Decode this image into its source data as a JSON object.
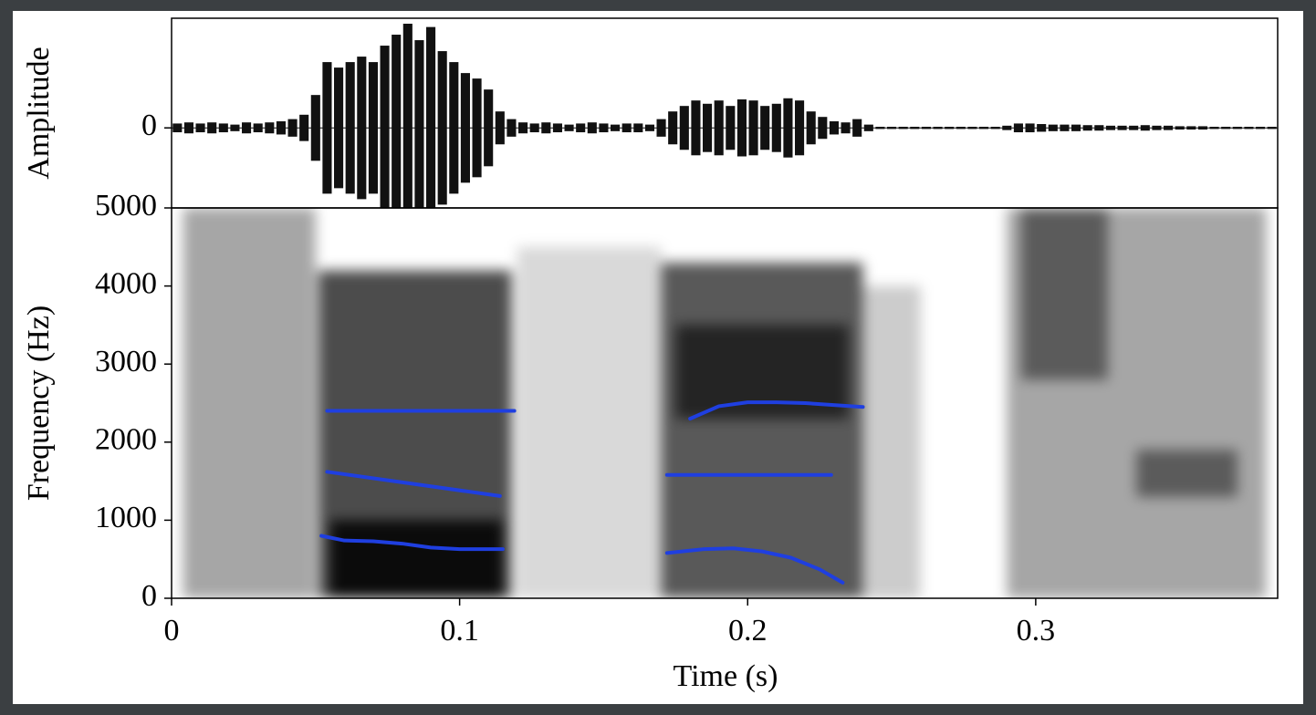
{
  "chart_data": [
    {
      "type": "waveform",
      "ylabel": "Amplitude",
      "color": "#111111",
      "xlim": [
        0,
        0.384
      ],
      "ylim": [
        -0.73,
        1
      ],
      "yticks": [
        0
      ],
      "x": [
        0.002,
        0.006,
        0.01,
        0.014,
        0.018,
        0.022,
        0.026,
        0.03,
        0.034,
        0.038,
        0.042,
        0.046,
        0.05,
        0.054,
        0.058,
        0.062,
        0.066,
        0.07,
        0.074,
        0.078,
        0.082,
        0.086,
        0.09,
        0.094,
        0.098,
        0.102,
        0.106,
        0.11,
        0.114,
        0.118,
        0.122,
        0.126,
        0.13,
        0.134,
        0.138,
        0.142,
        0.146,
        0.15,
        0.154,
        0.158,
        0.162,
        0.166,
        0.17,
        0.174,
        0.178,
        0.182,
        0.186,
        0.19,
        0.194,
        0.198,
        0.202,
        0.206,
        0.21,
        0.214,
        0.218,
        0.222,
        0.226,
        0.23,
        0.234,
        0.238,
        0.242,
        0.246,
        0.25,
        0.254,
        0.258,
        0.262,
        0.266,
        0.27,
        0.274,
        0.278,
        0.282,
        0.286,
        0.29,
        0.294,
        0.298,
        0.302,
        0.306,
        0.31,
        0.314,
        0.318,
        0.322,
        0.326,
        0.33,
        0.334,
        0.338,
        0.342,
        0.346,
        0.35,
        0.354,
        0.358,
        0.362,
        0.366,
        0.37,
        0.374,
        0.378,
        0.382
      ],
      "values": [
        0.04,
        0.05,
        0.04,
        0.05,
        0.04,
        0.03,
        0.05,
        0.04,
        0.05,
        0.06,
        0.08,
        0.12,
        0.3,
        0.6,
        0.55,
        0.6,
        0.65,
        0.6,
        0.75,
        0.85,
        0.95,
        0.8,
        0.92,
        0.7,
        0.6,
        0.5,
        0.45,
        0.35,
        0.15,
        0.08,
        0.05,
        0.04,
        0.05,
        0.04,
        0.03,
        0.04,
        0.05,
        0.04,
        0.03,
        0.04,
        0.04,
        0.03,
        0.08,
        0.15,
        0.2,
        0.25,
        0.22,
        0.25,
        0.2,
        0.26,
        0.25,
        0.2,
        0.22,
        0.27,
        0.25,
        0.15,
        0.1,
        0.06,
        0.05,
        0.08,
        0.03,
        0.01,
        0.01,
        0.01,
        0.01,
        0.01,
        0.01,
        0.01,
        0.01,
        0.01,
        0.01,
        0.01,
        0.02,
        0.04,
        0.04,
        0.035,
        0.03,
        0.03,
        0.03,
        0.025,
        0.025,
        0.02,
        0.02,
        0.02,
        0.025,
        0.02,
        0.02,
        0.015,
        0.015,
        0.015,
        0.01,
        0.01,
        0.01,
        0.01,
        0.01,
        0.01
      ]
    },
    {
      "type": "spectrogram",
      "xlabel": "Time (s)",
      "ylabel": "Frequency (Hz)",
      "xlim": [
        0,
        0.384
      ],
      "ylim": [
        0,
        5000
      ],
      "xticks": [
        0,
        0.1,
        0.2,
        0.3
      ],
      "yticks": [
        0,
        1000,
        2000,
        3000,
        4000,
        5000
      ],
      "regions": [
        {
          "t": [
            0.004,
            0.05
          ],
          "f": [
            0,
            5000
          ],
          "intensity": 0.35
        },
        {
          "t": [
            0.051,
            0.118
          ],
          "f": [
            0,
            4200
          ],
          "intensity": 0.7
        },
        {
          "t": [
            0.055,
            0.115
          ],
          "f": [
            0,
            1000
          ],
          "intensity": 0.85
        },
        {
          "t": [
            0.12,
            0.17
          ],
          "f": [
            0,
            4500
          ],
          "intensity": 0.15
        },
        {
          "t": [
            0.17,
            0.24
          ],
          "f": [
            0,
            4300
          ],
          "intensity": 0.65
        },
        {
          "t": [
            0.175,
            0.235
          ],
          "f": [
            2300,
            3500
          ],
          "intensity": 0.6
        },
        {
          "t": [
            0.24,
            0.26
          ],
          "f": [
            0,
            4000
          ],
          "intensity": 0.2
        },
        {
          "t": [
            0.29,
            0.38
          ],
          "f": [
            0,
            5000
          ],
          "intensity": 0.35
        },
        {
          "t": [
            0.295,
            0.325
          ],
          "f": [
            2800,
            5000
          ],
          "intensity": 0.45
        },
        {
          "t": [
            0.335,
            0.37
          ],
          "f": [
            1300,
            1900
          ],
          "intensity": 0.45
        }
      ],
      "track_color": "#1f3fe0",
      "formant_tracks": [
        {
          "x": [
            0.054,
            0.119
          ],
          "values": [
            2400,
            2400
          ]
        },
        {
          "x": [
            0.054,
            0.114
          ],
          "values": [
            1620,
            1310
          ]
        },
        {
          "x": [
            0.052,
            0.06,
            0.07,
            0.08,
            0.09,
            0.1,
            0.115
          ],
          "values": [
            800,
            740,
            730,
            700,
            650,
            630,
            630
          ]
        },
        {
          "x": [
            0.18,
            0.19,
            0.2,
            0.21,
            0.22,
            0.24
          ],
          "values": [
            2300,
            2460,
            2510,
            2510,
            2500,
            2450
          ]
        },
        {
          "x": [
            0.172,
            0.229
          ],
          "values": [
            1580,
            1580
          ]
        },
        {
          "x": [
            0.172,
            0.185,
            0.195,
            0.205,
            0.215,
            0.225,
            0.233
          ],
          "values": [
            580,
            630,
            640,
            600,
            520,
            370,
            200
          ]
        }
      ]
    }
  ]
}
